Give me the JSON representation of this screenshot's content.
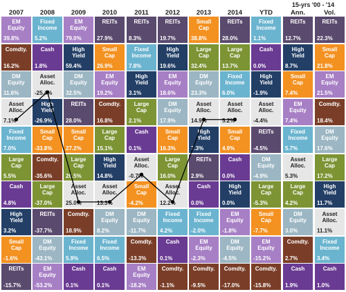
{
  "colors": {
    "em-equity": "#a77fc5",
    "fixed-income": "#6bb4cf",
    "reits": "#5a4a6e",
    "small-cap": "#f39121",
    "commodities": "#7a3e28",
    "cash": "#6a3b93",
    "high-yield": "#233f66",
    "dm-equity": "#9cb6c3",
    "large-cap": "#7c9434",
    "asset-alloc": "#e6e6e6"
  },
  "chart_data": {
    "type": "table",
    "header_note": "15-yrs '00 - '14",
    "columns": [
      "2007",
      "2008",
      "2009",
      "2010",
      "2011",
      "2012",
      "2013",
      "2014",
      "YTD",
      "Ann.",
      "Vol."
    ],
    "grid": [
      [
        {
          "label": "EM\nEquity",
          "value": "39.8%",
          "cat": "em-equity"
        },
        {
          "label": "Fixed\nIncome",
          "value": "5.2%",
          "cat": "fixed-income"
        },
        {
          "label": "EM\nEquity",
          "value": "79.0%",
          "cat": "em-equity"
        },
        {
          "label": "REITs",
          "value": "27.9%",
          "cat": "reits"
        },
        {
          "label": "REITs",
          "value": "8.3%",
          "cat": "reits"
        },
        {
          "label": "REITs",
          "value": "19.7%",
          "cat": "reits"
        },
        {
          "label": "Small\nCap",
          "value": "38.8%",
          "cat": "small-cap"
        },
        {
          "label": "REITs",
          "value": "28.0%",
          "cat": "reits"
        },
        {
          "label": "Fixed\nIncome",
          "value": "1.1%",
          "cat": "fixed-income"
        },
        {
          "label": "REITs",
          "value": "12.7%",
          "cat": "reits"
        },
        {
          "label": "REITs",
          "value": "22.3%",
          "cat": "reits"
        }
      ],
      [
        {
          "label": "Comdty.",
          "value": "16.2%",
          "cat": "commodities"
        },
        {
          "label": "Cash",
          "value": "1.8%",
          "cat": "cash"
        },
        {
          "label": "High\nYield",
          "value": "59.4%",
          "cat": "high-yield"
        },
        {
          "label": "Small\nCap",
          "value": "26.9%",
          "cat": "small-cap"
        },
        {
          "label": "Fixed\nIncome",
          "value": "7.8%",
          "cat": "fixed-income"
        },
        {
          "label": "High\nYield",
          "value": "19.6%",
          "cat": "high-yield"
        },
        {
          "label": "Large\nCap",
          "value": "32.4%",
          "cat": "large-cap"
        },
        {
          "label": "Large\nCap",
          "value": "13.7%",
          "cat": "large-cap"
        },
        {
          "label": "Cash",
          "value": "0.0%",
          "cat": "cash"
        },
        {
          "label": "High\nYield",
          "value": "8.7%",
          "cat": "high-yield"
        },
        {
          "label": "Small\nCap",
          "value": "21.8%",
          "cat": "small-cap"
        }
      ],
      [
        {
          "label": "DM\nEquity",
          "value": "11.6%",
          "cat": "dm-equity"
        },
        {
          "label": "Asset\nAlloc.",
          "value": "-25.4%",
          "cat": "asset-alloc"
        },
        {
          "label": "DM\nEquity",
          "value": "32.5%",
          "cat": "dm-equity"
        },
        {
          "label": "EM\nEquity",
          "value": "19.2%",
          "cat": "em-equity"
        },
        {
          "label": "High\nYield",
          "value": "3.1%",
          "cat": "high-yield"
        },
        {
          "label": "EM\nEquity",
          "value": "18.6%",
          "cat": "em-equity"
        },
        {
          "label": "DM\nEquity",
          "value": "23.3%",
          "cat": "dm-equity"
        },
        {
          "label": "Fixed\nIncome",
          "value": "6.0%",
          "cat": "fixed-income"
        },
        {
          "label": "High\nYield",
          "value": "-1.9%",
          "cat": "high-yield"
        },
        {
          "label": "Small\nCap",
          "value": "7.4%",
          "cat": "small-cap"
        },
        {
          "label": "EM\nEquity",
          "value": "21.5%",
          "cat": "em-equity"
        }
      ],
      [
        {
          "label": "Asset\nAlloc.",
          "value": "7.1%",
          "cat": "asset-alloc"
        },
        {
          "label": "High\nYield",
          "value": "-26.9%",
          "cat": "high-yield"
        },
        {
          "label": "REITs",
          "value": "28.0%",
          "cat": "reits"
        },
        {
          "label": "Comdty.",
          "value": "16.8%",
          "cat": "commodities"
        },
        {
          "label": "Large\nCap",
          "value": "2.1%",
          "cat": "large-cap"
        },
        {
          "label": "DM\nEquity",
          "value": "17.9%",
          "cat": "dm-equity"
        },
        {
          "label": "Asset\nAlloc.",
          "value": "14.9%",
          "cat": "asset-alloc"
        },
        {
          "label": "Asset\nAlloc.",
          "value": "5.2%",
          "cat": "asset-alloc"
        },
        {
          "label": "Asset\nAlloc.",
          "value": "-4.4%",
          "cat": "asset-alloc"
        },
        {
          "label": "EM\nEquity",
          "value": "7.4%",
          "cat": "em-equity"
        },
        {
          "label": "Comdty.",
          "value": "18.4%",
          "cat": "commodities"
        }
      ],
      [
        {
          "label": "Fixed\nIncome",
          "value": "7.0%",
          "cat": "fixed-income"
        },
        {
          "label": "Small\nCap",
          "value": "-33.8%",
          "cat": "small-cap"
        },
        {
          "label": "Small\nCap",
          "value": "27.2%",
          "cat": "small-cap"
        },
        {
          "label": "Large\nCap",
          "value": "15.1%",
          "cat": "large-cap"
        },
        {
          "label": "Cash",
          "value": "0.1%",
          "cat": "cash"
        },
        {
          "label": "Small\nCap",
          "value": "16.3%",
          "cat": "small-cap"
        },
        {
          "label": "High\nYield",
          "value": "7.3%",
          "cat": "high-yield"
        },
        {
          "label": "Small\nCap",
          "value": "4.9%",
          "cat": "small-cap"
        },
        {
          "label": "REITs",
          "value": "-4.5%",
          "cat": "reits"
        },
        {
          "label": "Fixed\nIncome",
          "value": "5.7%",
          "cat": "fixed-income"
        },
        {
          "label": "DM\nEquity",
          "value": "17.6%",
          "cat": "dm-equity"
        }
      ],
      [
        {
          "label": "Large\nCap",
          "value": "5.5%",
          "cat": "large-cap"
        },
        {
          "label": "Comdty.",
          "value": "-35.6%",
          "cat": "commodities"
        },
        {
          "label": "Large\nCap",
          "value": "26.5%",
          "cat": "large-cap"
        },
        {
          "label": "High\nYield",
          "value": "14.8%",
          "cat": "high-yield"
        },
        {
          "label": "Asset\nAlloc.",
          "value": "-0.7%",
          "cat": "asset-alloc"
        },
        {
          "label": "Large\nCap",
          "value": "16.0%",
          "cat": "large-cap"
        },
        {
          "label": "REITs",
          "value": "2.9%",
          "cat": "reits"
        },
        {
          "label": "Cash",
          "value": "0.0%",
          "cat": "cash"
        },
        {
          "label": "DM\nEquity",
          "value": "-4.9%",
          "cat": "dm-equity"
        },
        {
          "label": "Asset\nAlloc.",
          "value": "5.3%",
          "cat": "asset-alloc"
        },
        {
          "label": "Large\nCap",
          "value": "17.2%",
          "cat": "large-cap"
        }
      ],
      [
        {
          "label": "Cash",
          "value": "4.8%",
          "cat": "cash"
        },
        {
          "label": "Large\nCap",
          "value": "-37.0%",
          "cat": "large-cap"
        },
        {
          "label": "Asset\nAlloc.",
          "value": "25.0%",
          "cat": "asset-alloc"
        },
        {
          "label": "Asset\nAlloc.",
          "value": "13.3%",
          "cat": "asset-alloc"
        },
        {
          "label": "Small\nCap",
          "value": "-4.2%",
          "cat": "small-cap"
        },
        {
          "label": "Asset\nAlloc.",
          "value": "12.2%",
          "cat": "asset-alloc"
        },
        {
          "label": "Cash",
          "value": "0.0%",
          "cat": "cash"
        },
        {
          "label": "High\nYield",
          "value": "0.0%",
          "cat": "high-yield"
        },
        {
          "label": "Large\nCap",
          "value": "-5.3%",
          "cat": "large-cap"
        },
        {
          "label": "Large\nCap",
          "value": "4.2%",
          "cat": "large-cap"
        },
        {
          "label": "High\nYield",
          "value": "11.7%",
          "cat": "high-yield"
        }
      ],
      [
        {
          "label": "High\nYield",
          "value": "3.2%",
          "cat": "high-yield"
        },
        {
          "label": "REITs",
          "value": "-37.7%",
          "cat": "reits"
        },
        {
          "label": "Comdty.",
          "value": "18.9%",
          "cat": "commodities"
        },
        {
          "label": "DM\nEquity",
          "value": "8.2%",
          "cat": "dm-equity"
        },
        {
          "label": "DM\nEquity",
          "value": "-11.7%",
          "cat": "dm-equity"
        },
        {
          "label": "Fixed\nIncome",
          "value": "4.2%",
          "cat": "fixed-income"
        },
        {
          "label": "Fixed\nIncome",
          "value": "-2.0%",
          "cat": "fixed-income"
        },
        {
          "label": "EM\nEquity",
          "value": "-1.8%",
          "cat": "em-equity"
        },
        {
          "label": "Small\nCap",
          "value": "-7.7%",
          "cat": "small-cap"
        },
        {
          "label": "DM\nEquity",
          "value": "3.0%",
          "cat": "dm-equity"
        },
        {
          "label": "Asset\nAlloc.",
          "value": "11.1%",
          "cat": "asset-alloc"
        }
      ],
      [
        {
          "label": "Small\nCap",
          "value": "-1.6%",
          "cat": "small-cap"
        },
        {
          "label": "DM\nEquity",
          "value": "-43.1%",
          "cat": "dm-equity"
        },
        {
          "label": "Fixed\nIncome",
          "value": "5.9%",
          "cat": "fixed-income"
        },
        {
          "label": "Fixed\nIncome",
          "value": "6.5%",
          "cat": "fixed-income"
        },
        {
          "label": "Comdty.",
          "value": "-13.3%",
          "cat": "commodities"
        },
        {
          "label": "Cash",
          "value": "0.1%",
          "cat": "cash"
        },
        {
          "label": "EM\nEquity",
          "value": "-2.3%",
          "cat": "em-equity"
        },
        {
          "label": "DM\nEquity",
          "value": "-4.5%",
          "cat": "dm-equity"
        },
        {
          "label": "EM\nEquity",
          "value": "-15.2%",
          "cat": "em-equity"
        },
        {
          "label": "Comdty.",
          "value": "2.7%",
          "cat": "commodities"
        },
        {
          "label": "Fixed\nIncome",
          "value": "3.4%",
          "cat": "fixed-income"
        }
      ],
      [
        {
          "label": "REITs",
          "value": "-15.7%",
          "cat": "reits"
        },
        {
          "label": "EM\nEquity",
          "value": "-53.2%",
          "cat": "em-equity"
        },
        {
          "label": "Cash",
          "value": "0.1%",
          "cat": "cash"
        },
        {
          "label": "Cash",
          "value": "0.1%",
          "cat": "cash"
        },
        {
          "label": "EM\nEquity",
          "value": "-18.2%",
          "cat": "em-equity"
        },
        {
          "label": "Comdty.",
          "value": "-1.1%",
          "cat": "commodities"
        },
        {
          "label": "Comdty.",
          "value": "-9.5%",
          "cat": "commodities"
        },
        {
          "label": "Comdty.",
          "value": "-17.0%",
          "cat": "commodities"
        },
        {
          "label": "Comdty.",
          "value": "-15.8%",
          "cat": "commodities"
        },
        {
          "label": "Cash",
          "value": "1.9%",
          "cat": "cash"
        },
        {
          "label": "Cash",
          "value": "1.0%",
          "cat": "cash"
        }
      ]
    ],
    "highlight_path": {
      "category": "asset-alloc",
      "columns": [
        "2007",
        "2008",
        "2009",
        "2010",
        "2011",
        "2012",
        "2013",
        "2014"
      ],
      "rows": [
        4,
        3,
        7,
        7,
        6,
        7,
        4,
        4
      ]
    }
  }
}
